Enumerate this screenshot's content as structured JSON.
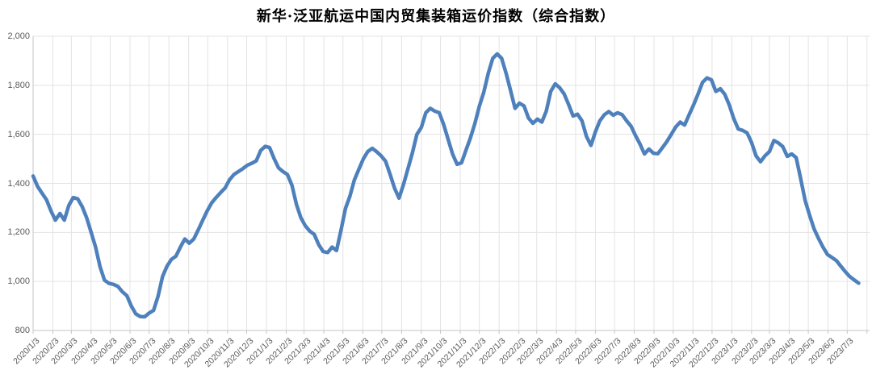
{
  "chart_data": {
    "type": "line",
    "title": "新华·泛亚航运中国内贸集装箱运价指数（综合指数）",
    "legend": "none",
    "grid": "both",
    "ylim": [
      800,
      2000
    ],
    "y_ticks": [
      800,
      1000,
      1200,
      1400,
      1600,
      1800,
      2000
    ],
    "y_tick_labels": [
      "800",
      "1,000",
      "1,200",
      "1,400",
      "1,600",
      "1,800",
      "2,000"
    ],
    "x_tick_labels": [
      "2020/1/3",
      "2020/2/3",
      "2020/3/3",
      "2020/4/3",
      "2020/5/3",
      "2020/6/3",
      "2020/7/3",
      "2020/8/3",
      "2020/9/3",
      "2020/10/3",
      "2020/11/3",
      "2020/12/3",
      "2021/1/3",
      "2021/2/3",
      "2021/3/3",
      "2021/4/3",
      "2021/5/3",
      "2021/6/3",
      "2021/7/3",
      "2021/8/3",
      "2021/9/3",
      "2021/10/3",
      "2021/11/3",
      "2021/12/3",
      "2022/1/3",
      "2022/2/3",
      "2022/3/3",
      "2022/4/3",
      "2022/5/3",
      "2022/6/3",
      "2022/7/3",
      "2022/8/3",
      "2022/9/3",
      "2022/10/3",
      "2022/11/3",
      "2022/12/3",
      "2023/1/3",
      "2023/2/3",
      "2023/3/3",
      "2023/4/3",
      "2023/5/3",
      "2023/6/3",
      "2023/7/3"
    ],
    "line_color": "#4E80BC",
    "series": [
      {
        "name": "综合指数",
        "points": [
          [
            "2020/1/3",
            1430
          ],
          [
            "2020/1/10",
            1388
          ],
          [
            "2020/1/17",
            1360
          ],
          [
            "2020/1/24",
            1333
          ],
          [
            "2020/1/31",
            1288
          ],
          [
            "2020/2/7",
            1250
          ],
          [
            "2020/2/14",
            1277
          ],
          [
            "2020/2/21",
            1250
          ],
          [
            "2020/2/28",
            1310
          ],
          [
            "2020/3/6",
            1342
          ],
          [
            "2020/3/13",
            1337
          ],
          [
            "2020/3/20",
            1305
          ],
          [
            "2020/3/27",
            1260
          ],
          [
            "2020/4/3",
            1200
          ],
          [
            "2020/4/10",
            1140
          ],
          [
            "2020/4/17",
            1060
          ],
          [
            "2020/4/24",
            1005
          ],
          [
            "2020/5/1",
            992
          ],
          [
            "2020/5/8",
            988
          ],
          [
            "2020/5/15",
            980
          ],
          [
            "2020/5/22",
            958
          ],
          [
            "2020/5/29",
            942
          ],
          [
            "2020/6/5",
            900
          ],
          [
            "2020/6/12",
            868
          ],
          [
            "2020/6/19",
            857
          ],
          [
            "2020/6/26",
            856
          ],
          [
            "2020/7/3",
            871
          ],
          [
            "2020/7/10",
            882
          ],
          [
            "2020/7/17",
            940
          ],
          [
            "2020/7/24",
            1020
          ],
          [
            "2020/7/31",
            1062
          ],
          [
            "2020/8/7",
            1090
          ],
          [
            "2020/8/14",
            1103
          ],
          [
            "2020/8/21",
            1140
          ],
          [
            "2020/8/28",
            1173
          ],
          [
            "2020/9/4",
            1156
          ],
          [
            "2020/9/11",
            1173
          ],
          [
            "2020/9/18",
            1210
          ],
          [
            "2020/9/25",
            1249
          ],
          [
            "2020/10/2",
            1288
          ],
          [
            "2020/10/9",
            1320
          ],
          [
            "2020/10/16",
            1342
          ],
          [
            "2020/10/23",
            1362
          ],
          [
            "2020/10/30",
            1381
          ],
          [
            "2020/11/6",
            1414
          ],
          [
            "2020/11/13",
            1436
          ],
          [
            "2020/11/20",
            1448
          ],
          [
            "2020/11/27",
            1460
          ],
          [
            "2020/12/4",
            1474
          ],
          [
            "2020/12/11",
            1482
          ],
          [
            "2020/12/18",
            1492
          ],
          [
            "2020/12/25",
            1534
          ],
          [
            "2021/1/1",
            1551
          ],
          [
            "2021/1/8",
            1546
          ],
          [
            "2021/1/15",
            1501
          ],
          [
            "2021/1/22",
            1463
          ],
          [
            "2021/1/29",
            1448
          ],
          [
            "2021/2/5",
            1436
          ],
          [
            "2021/2/12",
            1392
          ],
          [
            "2021/2/19",
            1315
          ],
          [
            "2021/2/26",
            1260
          ],
          [
            "2021/3/5",
            1227
          ],
          [
            "2021/3/12",
            1205
          ],
          [
            "2021/3/19",
            1192
          ],
          [
            "2021/3/26",
            1150
          ],
          [
            "2021/4/2",
            1122
          ],
          [
            "2021/4/9",
            1118
          ],
          [
            "2021/4/16",
            1140
          ],
          [
            "2021/4/23",
            1126
          ],
          [
            "2021/4/30",
            1210
          ],
          [
            "2021/5/7",
            1298
          ],
          [
            "2021/5/14",
            1348
          ],
          [
            "2021/5/21",
            1414
          ],
          [
            "2021/5/28",
            1458
          ],
          [
            "2021/6/4",
            1500
          ],
          [
            "2021/6/11",
            1530
          ],
          [
            "2021/6/18",
            1543
          ],
          [
            "2021/6/25",
            1529
          ],
          [
            "2021/7/2",
            1512
          ],
          [
            "2021/7/9",
            1490
          ],
          [
            "2021/7/16",
            1436
          ],
          [
            "2021/7/23",
            1380
          ],
          [
            "2021/7/30",
            1340
          ],
          [
            "2021/8/6",
            1395
          ],
          [
            "2021/8/13",
            1460
          ],
          [
            "2021/8/20",
            1525
          ],
          [
            "2021/8/27",
            1600
          ],
          [
            "2021/9/3",
            1628
          ],
          [
            "2021/9/10",
            1688
          ],
          [
            "2021/9/17",
            1706
          ],
          [
            "2021/9/24",
            1695
          ],
          [
            "2021/10/1",
            1688
          ],
          [
            "2021/10/8",
            1640
          ],
          [
            "2021/10/15",
            1580
          ],
          [
            "2021/10/22",
            1520
          ],
          [
            "2021/10/29",
            1478
          ],
          [
            "2021/11/5",
            1484
          ],
          [
            "2021/11/12",
            1535
          ],
          [
            "2021/11/19",
            1585
          ],
          [
            "2021/11/26",
            1645
          ],
          [
            "2021/12/3",
            1715
          ],
          [
            "2021/12/10",
            1772
          ],
          [
            "2021/12/17",
            1850
          ],
          [
            "2021/12/24",
            1910
          ],
          [
            "2021/12/31",
            1928
          ],
          [
            "2022/1/7",
            1910
          ],
          [
            "2022/1/14",
            1848
          ],
          [
            "2022/1/21",
            1778
          ],
          [
            "2022/1/28",
            1706
          ],
          [
            "2022/2/4",
            1727
          ],
          [
            "2022/2/11",
            1716
          ],
          [
            "2022/2/18",
            1667
          ],
          [
            "2022/2/25",
            1645
          ],
          [
            "2022/3/4",
            1662
          ],
          [
            "2022/3/11",
            1650
          ],
          [
            "2022/3/18",
            1695
          ],
          [
            "2022/3/25",
            1775
          ],
          [
            "2022/4/1",
            1806
          ],
          [
            "2022/4/8",
            1790
          ],
          [
            "2022/4/15",
            1765
          ],
          [
            "2022/4/22",
            1722
          ],
          [
            "2022/4/29",
            1675
          ],
          [
            "2022/5/6",
            1682
          ],
          [
            "2022/5/13",
            1655
          ],
          [
            "2022/5/20",
            1592
          ],
          [
            "2022/5/27",
            1555
          ],
          [
            "2022/6/3",
            1610
          ],
          [
            "2022/6/10",
            1655
          ],
          [
            "2022/6/17",
            1680
          ],
          [
            "2022/6/24",
            1693
          ],
          [
            "2022/7/1",
            1678
          ],
          [
            "2022/7/8",
            1688
          ],
          [
            "2022/7/15",
            1680
          ],
          [
            "2022/7/22",
            1655
          ],
          [
            "2022/7/29",
            1633
          ],
          [
            "2022/8/5",
            1595
          ],
          [
            "2022/8/12",
            1560
          ],
          [
            "2022/8/19",
            1520
          ],
          [
            "2022/8/26",
            1540
          ],
          [
            "2022/9/2",
            1523
          ],
          [
            "2022/9/9",
            1521
          ],
          [
            "2022/9/16",
            1545
          ],
          [
            "2022/9/23",
            1570
          ],
          [
            "2022/9/30",
            1600
          ],
          [
            "2022/10/7",
            1630
          ],
          [
            "2022/10/14",
            1650
          ],
          [
            "2022/10/21",
            1638
          ],
          [
            "2022/10/28",
            1680
          ],
          [
            "2022/11/4",
            1720
          ],
          [
            "2022/11/11",
            1764
          ],
          [
            "2022/11/18",
            1812
          ],
          [
            "2022/11/25",
            1830
          ],
          [
            "2022/12/2",
            1822
          ],
          [
            "2022/12/9",
            1775
          ],
          [
            "2022/12/16",
            1786
          ],
          [
            "2022/12/23",
            1763
          ],
          [
            "2022/12/30",
            1720
          ],
          [
            "2023/1/6",
            1665
          ],
          [
            "2023/1/13",
            1622
          ],
          [
            "2023/1/20",
            1616
          ],
          [
            "2023/1/27",
            1606
          ],
          [
            "2023/2/3",
            1567
          ],
          [
            "2023/2/10",
            1512
          ],
          [
            "2023/2/17",
            1488
          ],
          [
            "2023/2/24",
            1512
          ],
          [
            "2023/3/3",
            1530
          ],
          [
            "2023/3/10",
            1575
          ],
          [
            "2023/3/17",
            1565
          ],
          [
            "2023/3/24",
            1550
          ],
          [
            "2023/3/31",
            1510
          ],
          [
            "2023/4/7",
            1520
          ],
          [
            "2023/4/14",
            1505
          ],
          [
            "2023/4/21",
            1420
          ],
          [
            "2023/4/28",
            1330
          ],
          [
            "2023/5/5",
            1270
          ],
          [
            "2023/5/12",
            1215
          ],
          [
            "2023/5/19",
            1175
          ],
          [
            "2023/5/26",
            1140
          ],
          [
            "2023/6/2",
            1110
          ],
          [
            "2023/6/9",
            1098
          ],
          [
            "2023/6/16",
            1085
          ],
          [
            "2023/6/23",
            1062
          ],
          [
            "2023/6/30",
            1040
          ],
          [
            "2023/7/7",
            1020
          ],
          [
            "2023/7/14",
            1006
          ],
          [
            "2023/7/21",
            993
          ]
        ]
      }
    ],
    "colors": {
      "grid": "#e3e3e3",
      "axis": "#c6c6c6",
      "tick_label": "#595959",
      "title": "#000000"
    }
  }
}
